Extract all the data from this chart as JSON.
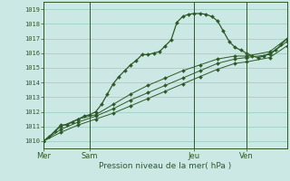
{
  "xlabel": "Pression niveau de la mer( hPa )",
  "bg_color": "#cce8e4",
  "grid_color": "#99ccbf",
  "line_color": "#2d5a27",
  "ylim": [
    1009.5,
    1019.5
  ],
  "yticks": [
    1010,
    1011,
    1012,
    1013,
    1014,
    1015,
    1016,
    1017,
    1018,
    1019
  ],
  "day_labels": [
    "Mer",
    "Sam",
    "Jeu",
    "Ven"
  ],
  "day_positions": [
    0,
    16,
    52,
    70
  ],
  "total_steps": 84,
  "line1_x": [
    0,
    2,
    4,
    6,
    8,
    10,
    12,
    14,
    16,
    18,
    20,
    22,
    24,
    26,
    28,
    30,
    32,
    34,
    36,
    38,
    40,
    42,
    44,
    46,
    48,
    50,
    52,
    54,
    56,
    58,
    60,
    62,
    64,
    66,
    68,
    70,
    72,
    74,
    76,
    78,
    80,
    82,
    84
  ],
  "line1_y": [
    1010.0,
    1010.3,
    1010.7,
    1011.1,
    1011.1,
    1011.3,
    1011.5,
    1011.7,
    1011.8,
    1012.0,
    1012.5,
    1013.2,
    1013.9,
    1014.4,
    1014.8,
    1015.2,
    1015.5,
    1015.9,
    1015.9,
    1016.0,
    1016.1,
    1016.5,
    1016.9,
    1018.1,
    1018.5,
    1018.65,
    1018.7,
    1018.7,
    1018.65,
    1018.5,
    1018.2,
    1017.5,
    1016.8,
    1016.4,
    1016.2,
    1016.0,
    1015.8,
    1015.7,
    1015.8,
    1016.0,
    1016.2,
    1016.6,
    1017.0
  ],
  "line2_x": [
    0,
    6,
    12,
    18,
    24,
    30,
    36,
    42,
    48,
    54,
    60,
    66,
    70,
    78,
    84
  ],
  "line2_y": [
    1010.0,
    1011.0,
    1011.5,
    1011.8,
    1012.5,
    1013.2,
    1013.8,
    1014.3,
    1014.8,
    1015.2,
    1015.6,
    1015.8,
    1015.8,
    1016.1,
    1017.0
  ],
  "line3_x": [
    0,
    6,
    12,
    18,
    24,
    30,
    36,
    42,
    48,
    54,
    60,
    66,
    70,
    78,
    84
  ],
  "line3_y": [
    1010.0,
    1010.8,
    1011.3,
    1011.7,
    1012.2,
    1012.8,
    1013.3,
    1013.8,
    1014.3,
    1014.8,
    1015.3,
    1015.6,
    1015.7,
    1015.9,
    1016.8
  ],
  "line4_x": [
    0,
    6,
    12,
    18,
    24,
    30,
    36,
    42,
    48,
    54,
    60,
    66,
    70,
    78,
    84
  ],
  "line4_y": [
    1010.0,
    1010.6,
    1011.1,
    1011.5,
    1011.9,
    1012.4,
    1012.9,
    1013.4,
    1013.9,
    1014.4,
    1014.9,
    1015.3,
    1015.4,
    1015.7,
    1016.5
  ]
}
